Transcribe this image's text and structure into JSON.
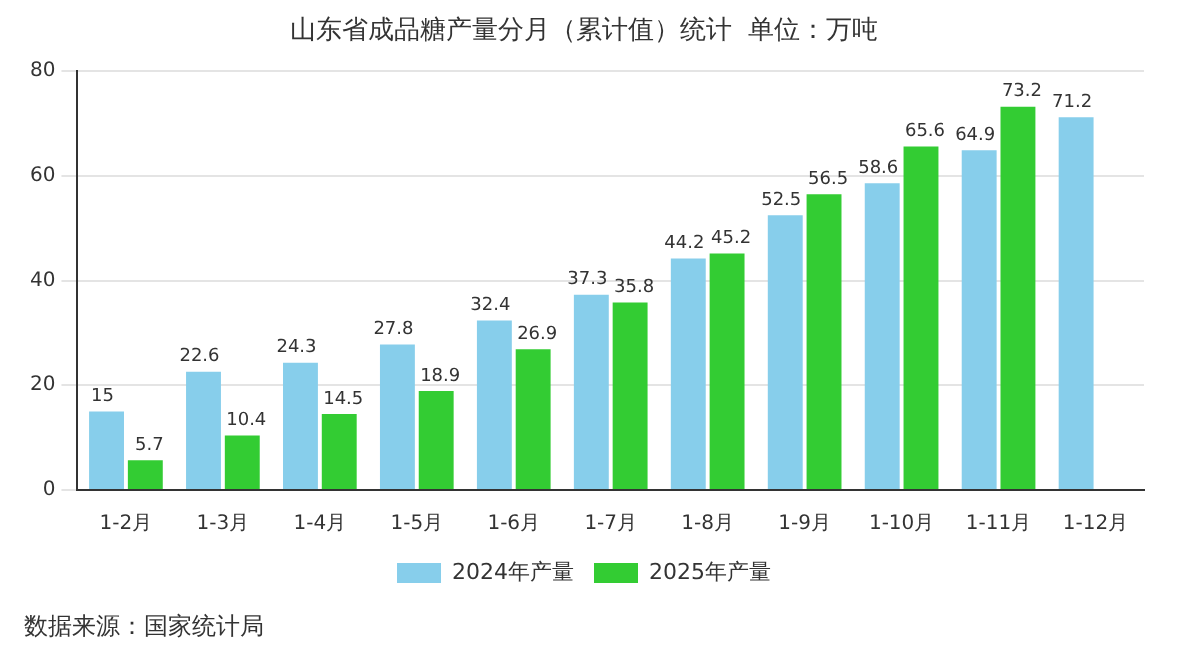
{
  "chart_data": {
    "type": "bar",
    "title": "山东省成品糖产量分月（累计值）统计  单位：万吨",
    "categories": [
      "1-2月",
      "1-3月",
      "1-4月",
      "1-5月",
      "1-6月",
      "1-7月",
      "1-8月",
      "1-9月",
      "1-10月",
      "1-11月",
      "1-12月"
    ],
    "series": [
      {
        "name": "2024年产量",
        "color": "#87ceeb",
        "values": [
          15,
          22.6,
          24.3,
          27.8,
          32.4,
          37.3,
          44.2,
          52.5,
          58.6,
          64.9,
          71.2
        ]
      },
      {
        "name": "2025年产量",
        "color": "#33cc33",
        "values": [
          5.7,
          10.4,
          14.5,
          18.9,
          26.9,
          35.8,
          45.2,
          56.5,
          65.6,
          73.2,
          null
        ]
      }
    ],
    "ylim": [
      0,
      80
    ],
    "yticks": [
      0,
      20,
      40,
      60,
      80
    ],
    "grid": "y",
    "legend": "bottom",
    "data_labels": true,
    "annotations": [
      "数据来源：国家统计局"
    ]
  }
}
